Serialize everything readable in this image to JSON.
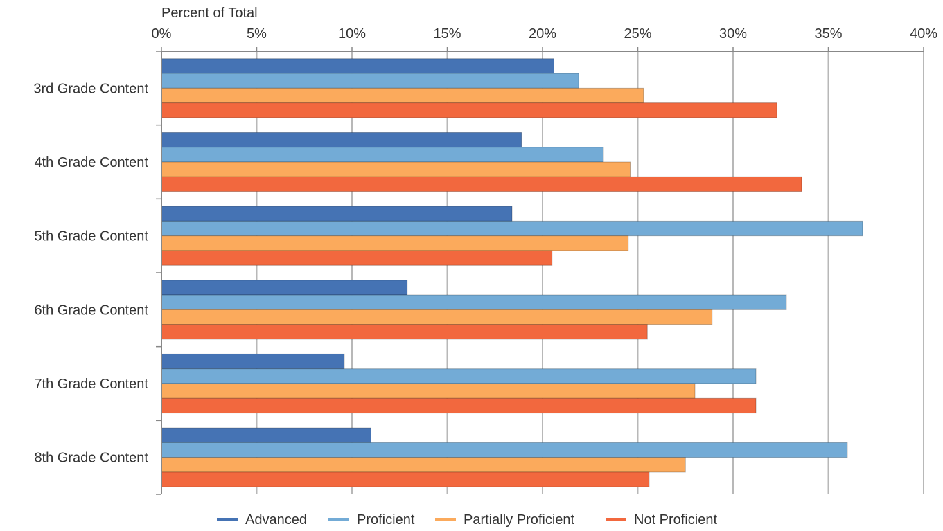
{
  "chart_data": {
    "type": "bar",
    "orientation": "horizontal",
    "x_axis_title": "Percent of Total",
    "x_ticks": [
      "0%",
      "5%",
      "10%",
      "15%",
      "20%",
      "25%",
      "30%",
      "35%",
      "40%"
    ],
    "xlim": [
      0,
      40
    ],
    "grid": true,
    "legend_position": "bottom",
    "categories": [
      "3rd Grade Content",
      "4th Grade Content",
      "5th Grade Content",
      "6th Grade Content",
      "7th Grade Content",
      "8th Grade Content"
    ],
    "series": [
      {
        "name": "Advanced",
        "color": "#4573b4",
        "values": [
          20.6,
          18.9,
          18.4,
          12.9,
          9.6,
          11.0
        ]
      },
      {
        "name": "Proficient",
        "color": "#73abd6",
        "values": [
          21.9,
          23.2,
          36.8,
          32.8,
          31.2,
          36.0
        ]
      },
      {
        "name": "Partially Proficient",
        "color": "#fbaa5c",
        "values": [
          25.3,
          24.6,
          24.5,
          28.9,
          28.0,
          27.5
        ]
      },
      {
        "name": "Not Proficient",
        "color": "#f2683e",
        "values": [
          32.3,
          33.6,
          20.5,
          25.5,
          31.2,
          25.6
        ]
      }
    ]
  }
}
